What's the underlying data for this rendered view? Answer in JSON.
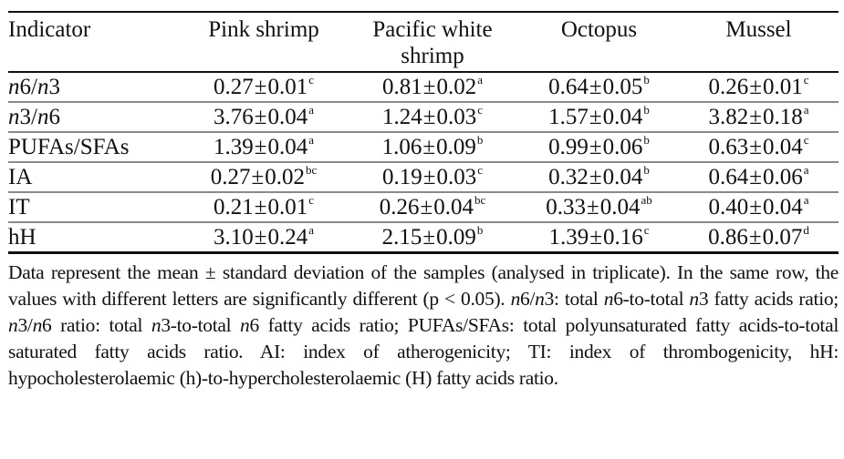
{
  "table": {
    "headers": [
      {
        "label": "Indicator"
      },
      {
        "label": "Pink shrimp"
      },
      {
        "label": "Pacific white shrimp"
      },
      {
        "label": "Octopus"
      },
      {
        "label": "Mussel"
      }
    ],
    "rows": [
      {
        "indicator": {
          "parts": [
            {
              "t": "n",
              "i": true
            },
            {
              "t": "6/",
              "i": false
            },
            {
              "t": "n",
              "i": true
            },
            {
              "t": "3",
              "i": false
            }
          ]
        },
        "cells": [
          {
            "mean": "0.27",
            "sd": "0.01",
            "sup": "c"
          },
          {
            "mean": "0.81",
            "sd": "0.02",
            "sup": "a"
          },
          {
            "mean": "0.64",
            "sd": "0.05",
            "sup": "b"
          },
          {
            "mean": "0.26",
            "sd": "0.01",
            "sup": "c"
          }
        ]
      },
      {
        "indicator": {
          "parts": [
            {
              "t": "n",
              "i": true
            },
            {
              "t": "3/",
              "i": false
            },
            {
              "t": "n",
              "i": true
            },
            {
              "t": "6",
              "i": false
            }
          ]
        },
        "cells": [
          {
            "mean": "3.76",
            "sd": "0.04",
            "sup": "a"
          },
          {
            "mean": "1.24",
            "sd": "0.03",
            "sup": "c"
          },
          {
            "mean": "1.57",
            "sd": "0.04",
            "sup": "b"
          },
          {
            "mean": "3.82",
            "sd": "0.18",
            "sup": "a"
          }
        ]
      },
      {
        "indicator": {
          "parts": [
            {
              "t": "PUFAs/SFAs",
              "i": false
            }
          ]
        },
        "cells": [
          {
            "mean": "1.39",
            "sd": "0.04",
            "sup": "a"
          },
          {
            "mean": "1.06",
            "sd": "0.09",
            "sup": "b"
          },
          {
            "mean": "0.99",
            "sd": "0.06",
            "sup": "b"
          },
          {
            "mean": "0.63",
            "sd": "0.04",
            "sup": "c"
          }
        ]
      },
      {
        "indicator": {
          "parts": [
            {
              "t": "IA",
              "i": false
            }
          ]
        },
        "cells": [
          {
            "mean": "0.27",
            "sd": "0.02",
            "sup": "bc"
          },
          {
            "mean": "0.19",
            "sd": "0.03",
            "sup": "c"
          },
          {
            "mean": "0.32",
            "sd": "0.04",
            "sup": "b"
          },
          {
            "mean": "0.64",
            "sd": "0.06",
            "sup": "a"
          }
        ]
      },
      {
        "indicator": {
          "parts": [
            {
              "t": "IT",
              "i": false
            }
          ]
        },
        "cells": [
          {
            "mean": "0.21",
            "sd": "0.01",
            "sup": "c"
          },
          {
            "mean": "0.26",
            "sd": "0.04",
            "sup": "bc"
          },
          {
            "mean": "0.33",
            "sd": "0.04",
            "sup": "ab"
          },
          {
            "mean": "0.40",
            "sd": "0.04",
            "sup": "a"
          }
        ]
      },
      {
        "indicator": {
          "parts": [
            {
              "t": "hH",
              "i": false
            }
          ]
        },
        "cells": [
          {
            "mean": "3.10",
            "sd": "0.24",
            "sup": "a"
          },
          {
            "mean": "2.15",
            "sd": "0.09",
            "sup": "b"
          },
          {
            "mean": "1.39",
            "sd": "0.16",
            "sup": "c"
          },
          {
            "mean": "0.86",
            "sd": "0.07",
            "sup": "d"
          }
        ]
      }
    ],
    "pm_symbol": "±"
  },
  "footnote": {
    "segments": [
      {
        "t": "Data represent the mean ± standard deviation of the samples (analysed in triplicate). In the same row, the values with different letters are significantly different (p < 0.05). ",
        "i": false
      },
      {
        "t": "n",
        "i": true
      },
      {
        "t": "6/",
        "i": false
      },
      {
        "t": "n",
        "i": true
      },
      {
        "t": "3: total ",
        "i": false
      },
      {
        "t": "n",
        "i": true
      },
      {
        "t": "6-to-total ",
        "i": false
      },
      {
        "t": "n",
        "i": true
      },
      {
        "t": "3 fatty acids ratio; ",
        "i": false
      },
      {
        "t": "n",
        "i": true
      },
      {
        "t": "3/",
        "i": false
      },
      {
        "t": "n",
        "i": true
      },
      {
        "t": "6 ratio: total ",
        "i": false
      },
      {
        "t": "n",
        "i": true
      },
      {
        "t": "3-to-total ",
        "i": false
      },
      {
        "t": "n",
        "i": true
      },
      {
        "t": "6 fatty acids ratio; PUFAs/SFAs: total polyunsaturated fatty acids-to-total saturated fatty acids ratio. AI: index of atherogenicity; TI: index of thrombogenicity, hH: hypocholesterolaemic (h)-to-hypercholesterolaemic (H) fatty acids ratio.",
        "i": false
      }
    ]
  }
}
